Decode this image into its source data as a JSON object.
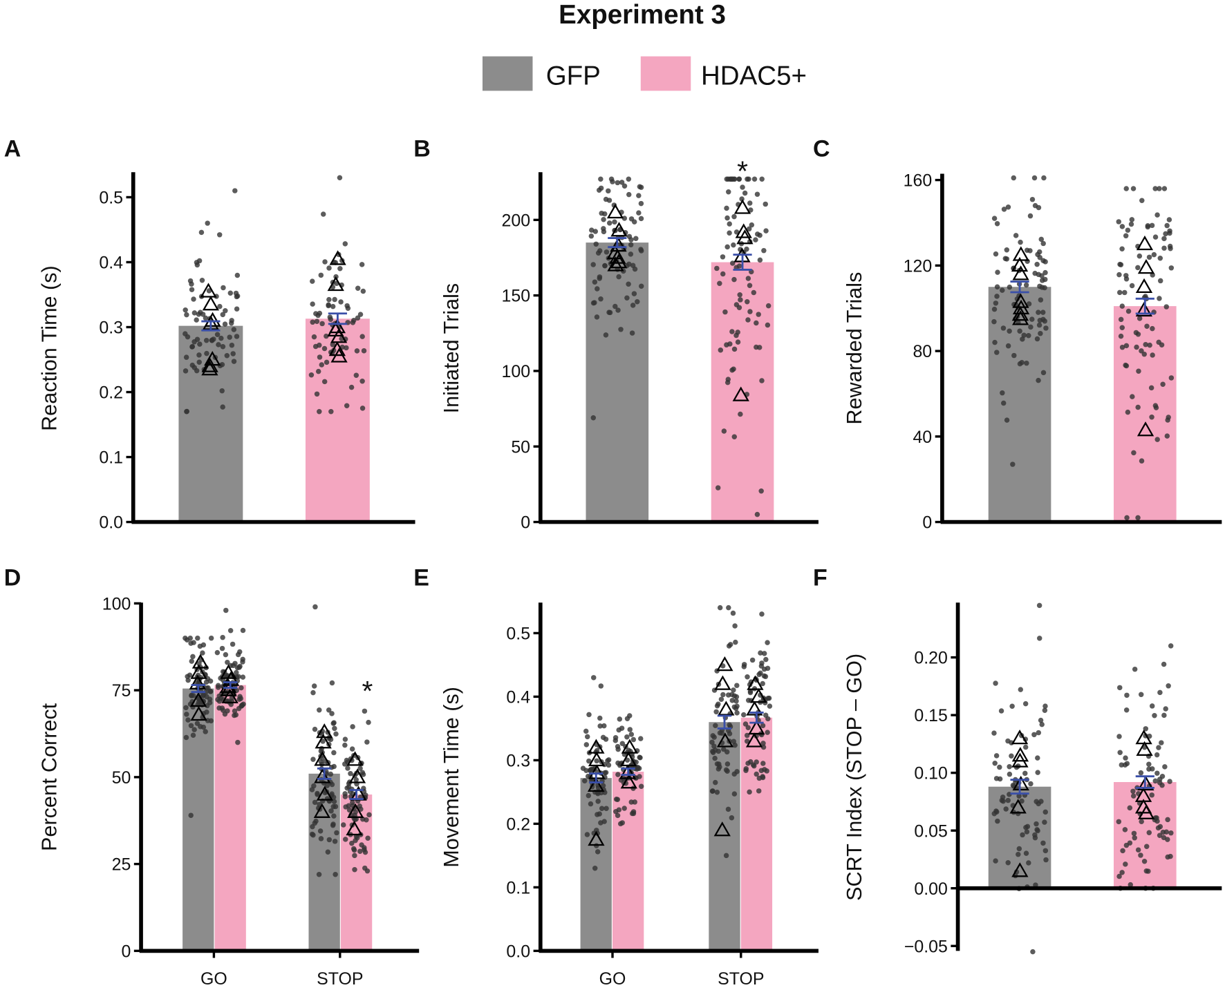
{
  "title": "Experiment 3",
  "legend": [
    {
      "label": "GFP",
      "color": "#8c8c8c"
    },
    {
      "label": "HDAC5+",
      "color": "#f4a6c0"
    }
  ],
  "colors": {
    "gfp": "#8c8c8c",
    "hdac": "#f4a6c0",
    "error": "#3a4fa8",
    "dot": "#333333"
  },
  "chart_data": [
    {
      "panel": "A",
      "type": "bar",
      "ylabel": "Reaction Time (s)",
      "ylim": [
        0,
        0.54
      ],
      "ticks": [
        0,
        0.1,
        0.2,
        0.3,
        0.4,
        0.5
      ],
      "tick_labels": [
        "0.0",
        "0.1",
        "0.2",
        "0.3",
        "0.4",
        "0.5"
      ],
      "categories": [],
      "bars": [
        {
          "series": "GFP",
          "value": 0.302,
          "sem": 0.007,
          "triangles": [
            0.355,
            0.335,
            0.31,
            0.305,
            0.25,
            0.24,
            0.235
          ],
          "dots": {
            "n": 75,
            "mean": 0.3,
            "sd": 0.065,
            "min": 0.17,
            "max": 0.51
          }
        },
        {
          "series": "HDAC5+",
          "value": 0.313,
          "sem": 0.008,
          "triangles": [
            0.405,
            0.365,
            0.3,
            0.295,
            0.285,
            0.265,
            0.255
          ],
          "dots": {
            "n": 75,
            "mean": 0.31,
            "sd": 0.07,
            "min": 0.17,
            "max": 0.53
          }
        }
      ]
    },
    {
      "panel": "B",
      "type": "bar",
      "ylabel": "Initiated Trials",
      "ylim": [
        0,
        231
      ],
      "ticks": [
        0,
        50,
        100,
        150,
        200
      ],
      "tick_labels": [
        "0",
        "50",
        "100",
        "150",
        "200"
      ],
      "categories": [],
      "annotation": "*",
      "bars": [
        {
          "series": "GFP",
          "value": 185,
          "sem": 3,
          "triangles": [
            205,
            193,
            183,
            178,
            175,
            172,
            170
          ],
          "dots": {
            "n": 90,
            "mean": 182,
            "sd": 30,
            "min": 69,
            "max": 227
          }
        },
        {
          "series": "HDAC5+",
          "value": 172,
          "sem": 5,
          "triangles": [
            208,
            192,
            188,
            176,
            84
          ],
          "dots": {
            "n": 90,
            "mean": 175,
            "sd": 50,
            "min": 5,
            "max": 227
          }
        }
      ]
    },
    {
      "panel": "C",
      "type": "bar",
      "ylabel": "Rewarded Trials",
      "ylim": [
        0,
        162
      ],
      "ticks": [
        0,
        40,
        80,
        120,
        160
      ],
      "tick_labels": [
        "0",
        "40",
        "80",
        "120",
        "160"
      ],
      "categories": [],
      "bars": [
        {
          "series": "GFP",
          "value": 110,
          "sem": 2.5,
          "triangles": [
            125,
            120,
            116,
            103,
            100,
            97,
            95
          ],
          "dots": {
            "n": 90,
            "mean": 108,
            "sd": 25,
            "min": 27,
            "max": 161
          }
        },
        {
          "series": "HDAC5+",
          "value": 101,
          "sem": 3.5,
          "triangles": [
            130,
            119,
            110,
            99,
            43
          ],
          "dots": {
            "n": 90,
            "mean": 102,
            "sd": 35,
            "min": 2,
            "max": 156
          }
        }
      ]
    },
    {
      "panel": "D",
      "type": "bar",
      "ylabel": "Percent Correct",
      "ylim": [
        0,
        100
      ],
      "ticks": [
        0,
        25,
        50,
        75,
        100
      ],
      "tick_labels": [
        "0",
        "25",
        "50",
        "75",
        "100"
      ],
      "categories": [
        "GO",
        "STOP"
      ],
      "annotation": "*",
      "bars": [
        {
          "series": "GFP",
          "category": "GO",
          "value": 75.5,
          "sem": 1,
          "triangles": [
            83,
            80,
            77,
            72,
            68
          ],
          "dots": {
            "n": 80,
            "mean": 76,
            "sd": 8,
            "min": 39,
            "max": 90
          }
        },
        {
          "series": "HDAC5+",
          "category": "GO",
          "value": 76.5,
          "sem": 0.8,
          "triangles": [
            80,
            78,
            76,
            75,
            73
          ],
          "dots": {
            "n": 80,
            "mean": 77,
            "sd": 6,
            "min": 60,
            "max": 98
          }
        },
        {
          "series": "GFP",
          "category": "STOP",
          "value": 51,
          "sem": 1.5,
          "triangles": [
            63,
            60,
            55,
            50,
            45,
            40
          ],
          "dots": {
            "n": 80,
            "mean": 50,
            "sd": 13,
            "min": 22,
            "max": 99
          }
        },
        {
          "series": "HDAC5+",
          "category": "STOP",
          "value": 45,
          "sem": 1.3,
          "triangles": [
            55,
            50,
            45,
            40,
            35
          ],
          "dots": {
            "n": 80,
            "mean": 45,
            "sd": 10,
            "min": 23,
            "max": 69
          }
        }
      ]
    },
    {
      "panel": "E",
      "type": "bar",
      "ylabel": "Movement Time (s)",
      "ylim": [
        0,
        0.54
      ],
      "ticks": [
        0,
        0.1,
        0.2,
        0.3,
        0.4,
        0.5
      ],
      "tick_labels": [
        "0.0",
        "0.1",
        "0.2",
        "0.3",
        "0.4",
        "0.5"
      ],
      "categories": [
        "GO",
        "STOP"
      ],
      "bars": [
        {
          "series": "GFP",
          "category": "GO",
          "value": 0.272,
          "sem": 0.007,
          "triangles": [
            0.32,
            0.3,
            0.28,
            0.26,
            0.175
          ],
          "dots": {
            "n": 70,
            "mean": 0.27,
            "sd": 0.05,
            "min": 0.13,
            "max": 0.43
          }
        },
        {
          "series": "HDAC5+",
          "category": "GO",
          "value": 0.282,
          "sem": 0.005,
          "triangles": [
            0.32,
            0.3,
            0.28,
            0.265
          ],
          "dots": {
            "n": 70,
            "mean": 0.28,
            "sd": 0.035,
            "min": 0.2,
            "max": 0.37
          }
        },
        {
          "series": "GFP",
          "category": "STOP",
          "value": 0.36,
          "sem": 0.01,
          "triangles": [
            0.45,
            0.42,
            0.38,
            0.33,
            0.19
          ],
          "dots": {
            "n": 70,
            "mean": 0.36,
            "sd": 0.08,
            "min": 0.15,
            "max": 0.54
          }
        },
        {
          "series": "HDAC5+",
          "category": "STOP",
          "value": 0.367,
          "sem": 0.008,
          "triangles": [
            0.42,
            0.4,
            0.38,
            0.35,
            0.33
          ],
          "dots": {
            "n": 70,
            "mean": 0.37,
            "sd": 0.06,
            "min": 0.25,
            "max": 0.53
          }
        }
      ]
    },
    {
      "panel": "F",
      "type": "bar",
      "ylabel": "SCRT Index (STOP – GO)",
      "ylim": [
        -0.055,
        0.25
      ],
      "ticks": [
        -0.05,
        0,
        0.05,
        0.1,
        0.15,
        0.2
      ],
      "tick_labels": [
        "−0.05",
        "0.00",
        "0.05",
        "0.10",
        "0.15",
        "0.20"
      ],
      "categories": [],
      "bars": [
        {
          "series": "GFP",
          "value": 0.088,
          "sem": 0.006,
          "triangles": [
            0.13,
            0.115,
            0.11,
            0.09,
            0.07,
            0.015
          ],
          "dots": {
            "n": 85,
            "mean": 0.085,
            "sd": 0.05,
            "min": -0.055,
            "max": 0.245
          }
        },
        {
          "series": "HDAC5+",
          "value": 0.092,
          "sem": 0.005,
          "triangles": [
            0.13,
            0.12,
            0.09,
            0.08,
            0.07,
            0.065
          ],
          "dots": {
            "n": 85,
            "mean": 0.09,
            "sd": 0.05,
            "min": 0,
            "max": 0.21
          }
        }
      ]
    }
  ]
}
